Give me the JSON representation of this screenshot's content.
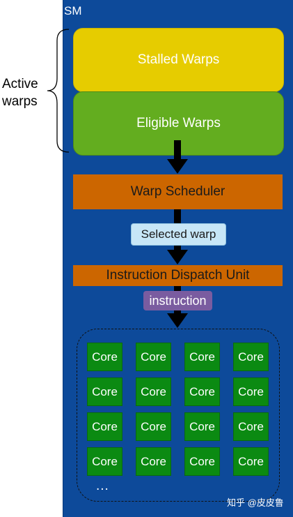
{
  "sm": {
    "label": "SM"
  },
  "bracket": {
    "label_line1": "Active",
    "label_line2": "warps"
  },
  "warps": {
    "stalled": "Stalled Warps",
    "eligible": "Eligible Warps"
  },
  "scheduler": {
    "label": "Warp Scheduler"
  },
  "selected_warp": {
    "label": "Selected warp"
  },
  "dispatch": {
    "label": "Instruction Dispatch Unit"
  },
  "instruction": {
    "label": "instruction"
  },
  "cores": {
    "label": "Core",
    "rows": [
      [
        "Core",
        "Core",
        "Core",
        "Core"
      ],
      [
        "Core",
        "Core",
        "Core",
        "Core"
      ],
      [
        "Core",
        "Core",
        "Core",
        "Core"
      ],
      [
        "Core",
        "Core",
        "Core",
        "Core"
      ]
    ],
    "ellipsis": "..."
  },
  "watermark": {
    "text": "知乎 @皮皮鲁"
  },
  "colors": {
    "sm_background": "#0d4a9a",
    "stalled": "#e6cc00",
    "eligible": "#63ad1f",
    "orange": "#cc6600",
    "selected_pill": "#c7e6f7",
    "instruction_pill": "#7a5ca0",
    "core": "#0b8a12"
  }
}
